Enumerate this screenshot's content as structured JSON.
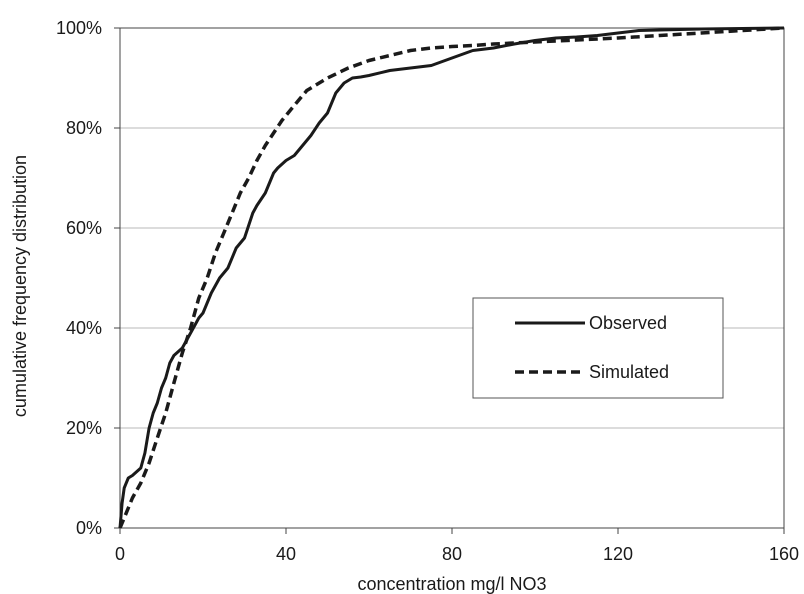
{
  "chart_data": {
    "type": "line",
    "title": "",
    "xlabel": "concentration mg/l NO3",
    "ylabel": "cumulative frequency distribution",
    "xlim": [
      0,
      160
    ],
    "ylim": [
      0,
      100
    ],
    "x_ticks": [
      "0",
      "40",
      "80",
      "120",
      "160"
    ],
    "y_ticks": [
      "0%",
      "20%",
      "40%",
      "60%",
      "80%",
      "100%"
    ],
    "grid": "horizontal",
    "legend_position": "right-middle",
    "series": [
      {
        "name": "Observed",
        "style": "solid",
        "color": "#1a1a1a",
        "x": [
          0,
          0.5,
          1,
          2,
          3,
          5,
          6,
          7,
          8,
          9,
          10,
          11,
          12,
          13,
          15,
          17,
          19,
          20,
          22,
          24,
          26,
          28,
          30,
          32,
          33,
          35,
          37,
          38,
          40,
          42,
          44,
          46,
          48,
          50,
          52,
          54,
          56,
          58,
          60,
          65,
          70,
          75,
          80,
          85,
          90,
          95,
          100,
          105,
          110,
          115,
          120,
          125,
          130,
          140,
          150,
          160
        ],
        "y": [
          0,
          5,
          8,
          10,
          10.5,
          12,
          15,
          20,
          23,
          25,
          28,
          30,
          33,
          34.5,
          36,
          39,
          42,
          43,
          47,
          50,
          52,
          56,
          58,
          63,
          64.5,
          67,
          71,
          72,
          73.5,
          74.5,
          76.5,
          78.5,
          81,
          83,
          87,
          89,
          90,
          90.2,
          90.5,
          91.5,
          92,
          92.5,
          94,
          95.5,
          96,
          96.8,
          97.5,
          98,
          98.2,
          98.5,
          99,
          99.5,
          99.6,
          99.8,
          99.9,
          100
        ]
      },
      {
        "name": "Simulated",
        "style": "dashed",
        "color": "#1a1a1a",
        "x": [
          0,
          1,
          2,
          3,
          5,
          7,
          9,
          11,
          13,
          15,
          17,
          19,
          21,
          23,
          25,
          27,
          29,
          31,
          33,
          35,
          37,
          39,
          41,
          43,
          45,
          48,
          50,
          55,
          60,
          65,
          70,
          75,
          80,
          85,
          90,
          100,
          110,
          120,
          130,
          140,
          150,
          160
        ],
        "y": [
          0,
          2,
          4,
          6,
          9,
          13,
          18,
          23,
          29,
          35,
          40,
          46,
          50,
          55,
          59,
          63,
          67,
          70,
          73.5,
          76.5,
          79,
          81.5,
          83.5,
          85.5,
          87.5,
          89,
          90,
          92,
          93.5,
          94.5,
          95.5,
          96,
          96.3,
          96.5,
          96.8,
          97.2,
          97.6,
          98,
          98.5,
          99,
          99.5,
          100
        ]
      }
    ]
  }
}
